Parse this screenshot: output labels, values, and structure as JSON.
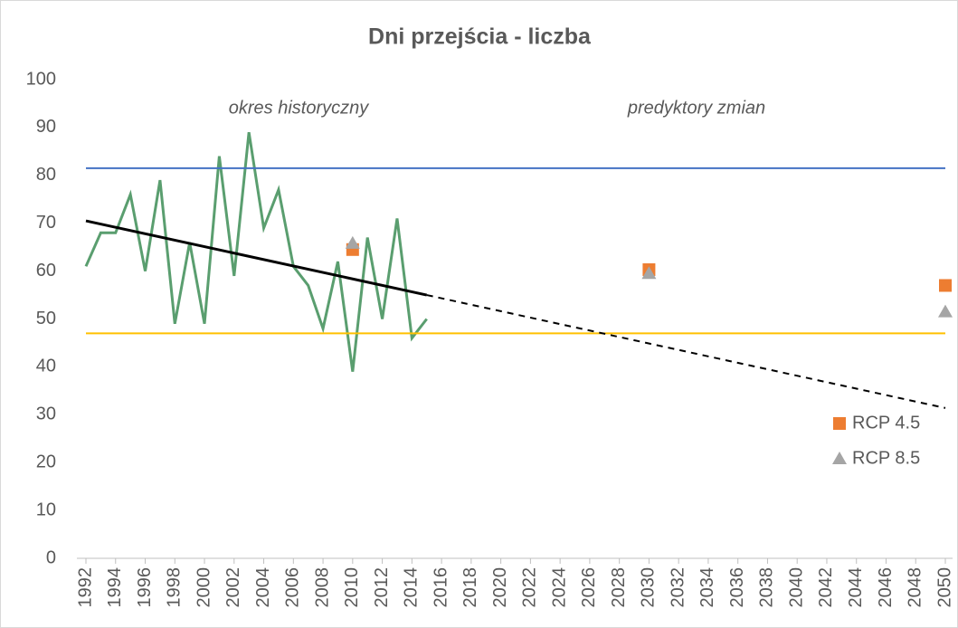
{
  "chart_data": {
    "type": "line",
    "title": "Dni przejścia - liczba",
    "annotations": [
      "okres historyczny",
      "predyktory zmian"
    ],
    "xlim": [
      1992,
      2050
    ],
    "xticks": [
      1992,
      1994,
      1996,
      1998,
      2000,
      2002,
      2004,
      2006,
      2008,
      2010,
      2012,
      2014,
      2016,
      2018,
      2020,
      2022,
      2024,
      2026,
      2028,
      2030,
      2032,
      2034,
      2036,
      2038,
      2040,
      2042,
      2044,
      2046,
      2048,
      2050
    ],
    "ylim": [
      0,
      100
    ],
    "yticks": [
      0,
      10,
      20,
      30,
      40,
      50,
      60,
      70,
      80,
      90,
      100
    ],
    "legend": "lower right",
    "series": [
      {
        "color": "#5a9e6f",
        "x": [
          1992,
          1993,
          1994,
          1995,
          1996,
          1997,
          1998,
          1999,
          2000,
          2001,
          2002,
          2003,
          2004,
          2005,
          2006,
          2007,
          2008,
          2009,
          2010,
          2011,
          2012,
          2013,
          2014,
          2015
        ],
        "values": [
          61,
          68,
          68,
          76,
          60,
          79,
          49,
          66,
          49,
          84,
          59,
          89,
          69,
          77,
          61,
          57,
          48,
          62,
          39,
          67,
          50,
          71,
          46,
          50
        ]
      },
      {
        "color": "#4472c4",
        "x": [
          1992,
          2050
        ],
        "values": [
          81.5,
          81.5
        ]
      },
      {
        "color": "#ffc000",
        "x": [
          1992,
          2050
        ],
        "values": [
          47,
          47
        ]
      },
      {
        "color": "#000000",
        "x": [
          1992,
          2015
        ],
        "values": [
          70.5,
          55
        ],
        "width": 3
      },
      {
        "color": "#000000",
        "x": [
          2015,
          2050
        ],
        "values": [
          55,
          31.4
        ],
        "dash": true
      },
      {
        "name": "RCP 4.5",
        "marker": "square",
        "color": "#ed7d31",
        "x": [
          2010,
          2030,
          2050
        ],
        "values": [
          64.5,
          60.3,
          57
        ]
      },
      {
        "name": "RCP 8.5",
        "marker": "triangle",
        "color": "#a5a5a5",
        "x": [
          2010,
          2030,
          2050
        ],
        "values": [
          65.8,
          59.5,
          51.5
        ]
      }
    ]
  }
}
